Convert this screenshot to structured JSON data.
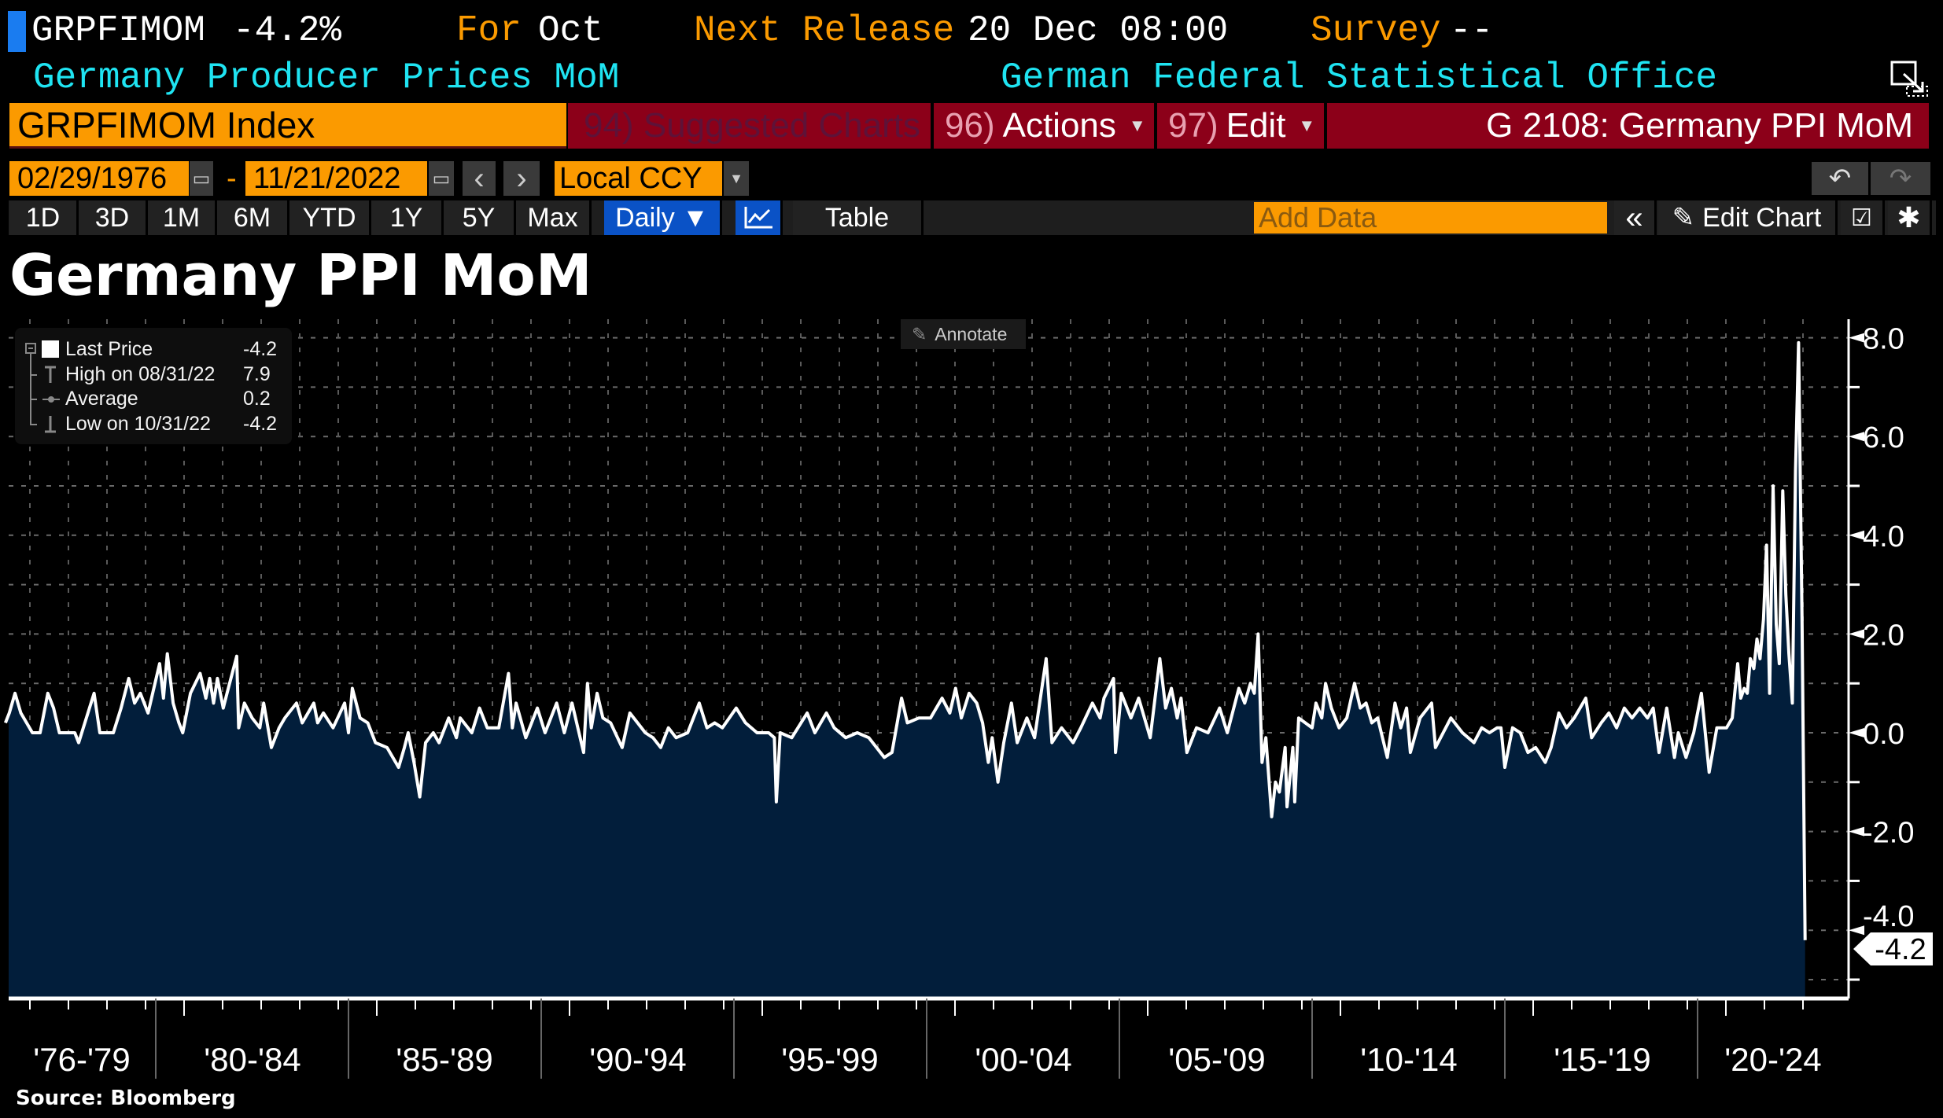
{
  "header": {
    "ticker": "GRPFIMOM",
    "last_change": "-4.2%",
    "for_label": "For",
    "for_value": "Oct",
    "next_release_label": "Next Release",
    "next_release_value": "20 Dec 08:00",
    "survey_label": "Survey",
    "survey_value": "--",
    "description": "Germany Producer Prices MoM",
    "source_agency": "German Federal Statistical Office"
  },
  "command_bar": {
    "security": "GRPFIMOM Index",
    "suggested_charts": "94) Suggested Charts",
    "actions_num": "96)",
    "actions": "Actions",
    "edit_num": "97)",
    "edit": "Edit",
    "page_title": "G 2108: Germany PPI MoM"
  },
  "date_range": {
    "start": "02/29/1976",
    "separator": "-",
    "end": "11/21/2022",
    "prev": "‹",
    "next": "›",
    "currency": "Local CCY"
  },
  "toolbar": {
    "periods": [
      "1D",
      "3D",
      "1M",
      "6M",
      "YTD",
      "1Y",
      "5Y",
      "Max"
    ],
    "frequency": "Daily ▼",
    "table": "Table",
    "add_data_placeholder": "Add Data",
    "collapse": "«",
    "edit_chart": "Edit Chart"
  },
  "annotate": "Annotate",
  "legend": {
    "rows": [
      {
        "label": "Last Price",
        "value": "-4.2"
      },
      {
        "label": "High on 08/31/22",
        "value": "7.9"
      },
      {
        "label": "Average",
        "value": "0.2"
      },
      {
        "label": "Low on 10/31/22",
        "value": "-4.2"
      }
    ]
  },
  "source": "Source: Bloomberg",
  "colors": {
    "accent_orange": "#fb9a00",
    "bar_red": "#8c0019",
    "cyan": "#1fe4f2",
    "area_fill": "#021e3b",
    "line": "#ffffff",
    "active_blue": "#0a52c6"
  },
  "chart_data": {
    "type": "area",
    "title": "Germany PPI MoM",
    "xlabel": "",
    "ylabel": "",
    "ylim": [
      -5.4,
      8.5
    ],
    "y_ticks": [
      "8.0",
      "6.0",
      "4.0",
      "2.0",
      "0.0",
      "-2.0",
      "-4.0"
    ],
    "y_axis_side": "right",
    "x_tick_labels": [
      "'76-'79",
      "'80-'84",
      "'85-'89",
      "'90-'94",
      "'95-'99",
      "'00-'04",
      "'05-'09",
      "'10-'14",
      "'15-'19",
      "'20-'24"
    ],
    "grid": true,
    "last_value_label": "-4.2",
    "series": [
      {
        "name": "Last Price",
        "points": [
          [
            1976.1,
            0.2
          ],
          [
            1976.2,
            0.4
          ],
          [
            1976.35,
            0.8
          ],
          [
            1976.5,
            0.4
          ],
          [
            1976.8,
            0
          ],
          [
            1977.0,
            0
          ],
          [
            1977.2,
            0.8
          ],
          [
            1977.35,
            0.5
          ],
          [
            1977.5,
            0
          ],
          [
            1977.9,
            0
          ],
          [
            1978.0,
            -0.2
          ],
          [
            1978.2,
            0.3
          ],
          [
            1978.4,
            0.8
          ],
          [
            1978.55,
            0
          ],
          [
            1978.9,
            0
          ],
          [
            1979.1,
            0.5
          ],
          [
            1979.3,
            1.1
          ],
          [
            1979.45,
            0.6
          ],
          [
            1979.6,
            0.8
          ],
          [
            1979.8,
            0.4
          ],
          [
            1980.1,
            1.4
          ],
          [
            1980.2,
            0.7
          ],
          [
            1980.3,
            1.6
          ],
          [
            1980.45,
            0.6
          ],
          [
            1980.6,
            0.2
          ],
          [
            1980.7,
            0
          ],
          [
            1980.9,
            0.8
          ],
          [
            1981.15,
            1.2
          ],
          [
            1981.3,
            0.7
          ],
          [
            1981.4,
            1.1
          ],
          [
            1981.5,
            0.6
          ],
          [
            1981.6,
            1.1
          ],
          [
            1981.75,
            0.5
          ],
          [
            1981.85,
            0.8
          ],
          [
            1982.1,
            1.55
          ],
          [
            1982.15,
            0.1
          ],
          [
            1982.3,
            0.6
          ],
          [
            1982.5,
            0.3
          ],
          [
            1982.7,
            0.1
          ],
          [
            1982.8,
            0.6
          ],
          [
            1983.0,
            -0.3
          ],
          [
            1983.2,
            0.1
          ],
          [
            1983.35,
            0.3
          ],
          [
            1983.65,
            0.6
          ],
          [
            1983.8,
            0.2
          ],
          [
            1984.1,
            0.6
          ],
          [
            1984.2,
            0.2
          ],
          [
            1984.35,
            0.4
          ],
          [
            1984.6,
            0.1
          ],
          [
            1984.9,
            0.6
          ],
          [
            1985.0,
            0
          ],
          [
            1985.1,
            0.9
          ],
          [
            1985.3,
            0.3
          ],
          [
            1985.5,
            0.2
          ],
          [
            1985.7,
            -0.2
          ],
          [
            1986.0,
            -0.3
          ],
          [
            1986.3,
            -0.7
          ],
          [
            1986.45,
            -0.3
          ],
          [
            1986.55,
            0
          ],
          [
            1986.7,
            -0.6
          ],
          [
            1986.85,
            -1.3
          ],
          [
            1987.0,
            -0.2
          ],
          [
            1987.2,
            0
          ],
          [
            1987.35,
            -0.2
          ],
          [
            1987.6,
            0.3
          ],
          [
            1987.8,
            -0.1
          ],
          [
            1987.9,
            0.3
          ],
          [
            1988.2,
            0
          ],
          [
            1988.4,
            0.5
          ],
          [
            1988.6,
            0.1
          ],
          [
            1988.9,
            0.1
          ],
          [
            1989.15,
            1.2
          ],
          [
            1989.25,
            0.1
          ],
          [
            1989.35,
            0.6
          ],
          [
            1989.6,
            -0.1
          ],
          [
            1989.9,
            0.5
          ],
          [
            1990.1,
            0
          ],
          [
            1990.4,
            0.6
          ],
          [
            1990.6,
            0
          ],
          [
            1990.8,
            0.6
          ],
          [
            1991.1,
            -0.4
          ],
          [
            1991.2,
            1.0
          ],
          [
            1991.3,
            0.1
          ],
          [
            1991.45,
            0.8
          ],
          [
            1991.6,
            0.3
          ],
          [
            1991.8,
            0.2
          ],
          [
            1992.1,
            -0.3
          ],
          [
            1992.3,
            0.4
          ],
          [
            1992.5,
            0.2
          ],
          [
            1992.7,
            0
          ],
          [
            1992.9,
            -0.1
          ],
          [
            1993.1,
            -0.3
          ],
          [
            1993.3,
            0.1
          ],
          [
            1993.5,
            -0.1
          ],
          [
            1993.8,
            0
          ],
          [
            1994.1,
            0.6
          ],
          [
            1994.3,
            0.1
          ],
          [
            1994.5,
            0.2
          ],
          [
            1994.7,
            0.1
          ],
          [
            1995.06,
            0.5
          ],
          [
            1995.3,
            0.2
          ],
          [
            1995.6,
            0
          ],
          [
            1995.9,
            0
          ],
          [
            1996.05,
            -0.1
          ],
          [
            1996.1,
            -1.4
          ],
          [
            1996.2,
            0
          ],
          [
            1996.5,
            -0.1
          ],
          [
            1996.9,
            0.4
          ],
          [
            1997.1,
            0
          ],
          [
            1997.4,
            0.4
          ],
          [
            1997.6,
            0.1
          ],
          [
            1997.9,
            -0.1
          ],
          [
            1998.2,
            0
          ],
          [
            1998.5,
            -0.1
          ],
          [
            1998.9,
            -0.5
          ],
          [
            1999.1,
            -0.4
          ],
          [
            1999.35,
            0.7
          ],
          [
            1999.5,
            0.2
          ],
          [
            1999.8,
            0.3
          ],
          [
            2000.1,
            0.3
          ],
          [
            2000.4,
            0.7
          ],
          [
            2000.6,
            0.4
          ],
          [
            2000.75,
            0.9
          ],
          [
            2000.9,
            0.3
          ],
          [
            2001.1,
            0.8
          ],
          [
            2001.3,
            0.6
          ],
          [
            2001.45,
            0.2
          ],
          [
            2001.6,
            -0.6
          ],
          [
            2001.7,
            -0.1
          ],
          [
            2001.85,
            -1.0
          ],
          [
            2002.0,
            -0.2
          ],
          [
            2002.2,
            0.6
          ],
          [
            2002.35,
            -0.2
          ],
          [
            2002.6,
            0.3
          ],
          [
            2002.8,
            -0.1
          ],
          [
            2003.1,
            1.5
          ],
          [
            2003.25,
            -0.2
          ],
          [
            2003.5,
            0.1
          ],
          [
            2003.8,
            -0.2
          ],
          [
            2004.0,
            0.1
          ],
          [
            2004.3,
            0.6
          ],
          [
            2004.5,
            0.3
          ],
          [
            2004.6,
            0.7
          ],
          [
            2004.85,
            1.1
          ],
          [
            2004.9,
            -0.4
          ],
          [
            2005.05,
            0.8
          ],
          [
            2005.3,
            0.3
          ],
          [
            2005.5,
            0.7
          ],
          [
            2005.8,
            -0.1
          ],
          [
            2006.05,
            1.5
          ],
          [
            2006.2,
            0.5
          ],
          [
            2006.35,
            0.9
          ],
          [
            2006.5,
            0.3
          ],
          [
            2006.6,
            0.7
          ],
          [
            2006.75,
            -0.4
          ],
          [
            2007.0,
            0.1
          ],
          [
            2007.3,
            0
          ],
          [
            2007.6,
            0.5
          ],
          [
            2007.8,
            0
          ],
          [
            2008.1,
            0.9
          ],
          [
            2008.25,
            0.6
          ],
          [
            2008.4,
            1.0
          ],
          [
            2008.5,
            0.8
          ],
          [
            2008.6,
            2.0
          ],
          [
            2008.7,
            -0.6
          ],
          [
            2008.8,
            -0.1
          ],
          [
            2008.95,
            -1.7
          ],
          [
            2009.05,
            -1.0
          ],
          [
            2009.15,
            -1.2
          ],
          [
            2009.3,
            -0.3
          ],
          [
            2009.35,
            -1.5
          ],
          [
            2009.5,
            -0.3
          ],
          [
            2009.55,
            -1.4
          ],
          [
            2009.65,
            0.3
          ],
          [
            2010.0,
            0.1
          ],
          [
            2010.1,
            0.6
          ],
          [
            2010.25,
            0.3
          ],
          [
            2010.35,
            1.0
          ],
          [
            2010.5,
            0.5
          ],
          [
            2010.7,
            0.1
          ],
          [
            2010.9,
            0.3
          ],
          [
            2011.1,
            1.0
          ],
          [
            2011.25,
            0.5
          ],
          [
            2011.4,
            0.6
          ],
          [
            2011.55,
            0.2
          ],
          [
            2011.7,
            0.3
          ],
          [
            2011.95,
            -0.5
          ],
          [
            2012.15,
            0.6
          ],
          [
            2012.3,
            0.1
          ],
          [
            2012.45,
            0.5
          ],
          [
            2012.55,
            -0.4
          ],
          [
            2012.8,
            0.3
          ],
          [
            2013.1,
            0.6
          ],
          [
            2013.2,
            -0.3
          ],
          [
            2013.4,
            0
          ],
          [
            2013.6,
            0.3
          ],
          [
            2013.9,
            0
          ],
          [
            2014.2,
            -0.2
          ],
          [
            2014.4,
            0.1
          ],
          [
            2014.6,
            0
          ],
          [
            2014.8,
            0.1
          ],
          [
            2014.9,
            0.1
          ],
          [
            2015.0,
            -0.7
          ],
          [
            2015.2,
            0.1
          ],
          [
            2015.4,
            0
          ],
          [
            2015.6,
            -0.4
          ],
          [
            2015.8,
            -0.3
          ],
          [
            2016.05,
            -0.6
          ],
          [
            2016.2,
            -0.3
          ],
          [
            2016.4,
            0.4
          ],
          [
            2016.6,
            0.1
          ],
          [
            2016.8,
            0.3
          ],
          [
            2017.1,
            0.7
          ],
          [
            2017.25,
            -0.1
          ],
          [
            2017.5,
            0.2
          ],
          [
            2017.7,
            0.4
          ],
          [
            2017.9,
            0.1
          ],
          [
            2018.1,
            0.5
          ],
          [
            2018.3,
            0.3
          ],
          [
            2018.5,
            0.5
          ],
          [
            2018.7,
            0.3
          ],
          [
            2018.85,
            0.5
          ],
          [
            2019.0,
            -0.4
          ],
          [
            2019.2,
            0.5
          ],
          [
            2019.4,
            -0.5
          ],
          [
            2019.5,
            0
          ],
          [
            2019.7,
            -0.5
          ],
          [
            2019.9,
            0
          ],
          [
            2020.1,
            0.8
          ],
          [
            2020.3,
            -0.8
          ],
          [
            2020.5,
            0.1
          ],
          [
            2020.75,
            0.1
          ],
          [
            2020.9,
            0.3
          ],
          [
            2021.04,
            1.4
          ],
          [
            2021.12,
            0.7
          ],
          [
            2021.21,
            0.9
          ],
          [
            2021.29,
            0.8
          ],
          [
            2021.37,
            1.5
          ],
          [
            2021.46,
            1.3
          ],
          [
            2021.54,
            1.9
          ],
          [
            2021.62,
            1.5
          ],
          [
            2021.71,
            2.3
          ],
          [
            2021.79,
            3.8
          ],
          [
            2021.87,
            0.8
          ],
          [
            2021.96,
            5.0
          ],
          [
            2022.04,
            2.2
          ],
          [
            2022.12,
            1.4
          ],
          [
            2022.21,
            4.9
          ],
          [
            2022.29,
            2.8
          ],
          [
            2022.37,
            1.6
          ],
          [
            2022.46,
            0.6
          ],
          [
            2022.54,
            5.3
          ],
          [
            2022.62,
            7.9
          ],
          [
            2022.71,
            2.3
          ],
          [
            2022.79,
            -4.2
          ]
        ]
      }
    ]
  }
}
